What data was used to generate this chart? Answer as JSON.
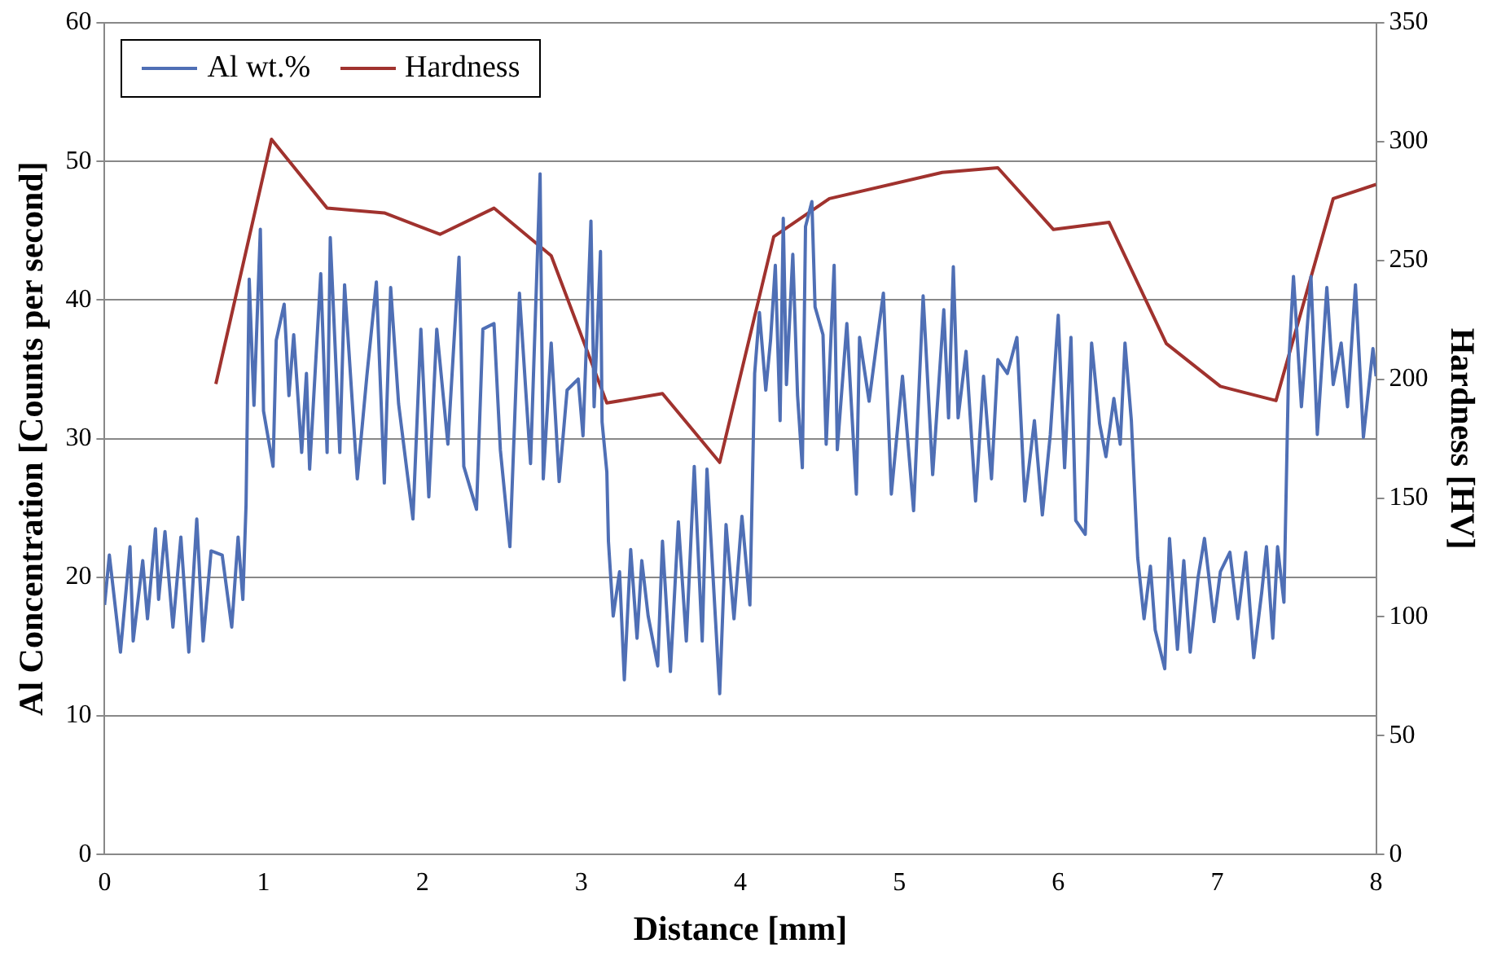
{
  "chart_data": {
    "type": "line",
    "xlabel": "Distance [mm]",
    "ylabel": "Al Concentration [Counts per second]",
    "y2label": "Hardness [HV]",
    "xlim": [
      0,
      8
    ],
    "xticks": [
      0,
      1,
      2,
      3,
      4,
      5,
      6,
      7,
      8
    ],
    "ylim": [
      0,
      60
    ],
    "yticks": [
      0,
      10,
      20,
      30,
      40,
      50,
      60
    ],
    "y2lim": [
      0,
      350
    ],
    "y2ticks": [
      0,
      50,
      100,
      150,
      200,
      250,
      300,
      350
    ],
    "grid": "y",
    "legend": "top left",
    "marker": "none",
    "line_style": "solid",
    "series": [
      {
        "name": "Al wt.%",
        "color": "#4f6fb5",
        "x": [
          0.0,
          0.03,
          0.1,
          0.16,
          0.18,
          0.24,
          0.27,
          0.32,
          0.34,
          0.38,
          0.43,
          0.48,
          0.53,
          0.58,
          0.62,
          0.67,
          0.74,
          0.8,
          0.84,
          0.87,
          0.89,
          0.91,
          0.94,
          0.98,
          1.0,
          1.06,
          1.08,
          1.13,
          1.16,
          1.19,
          1.24,
          1.27,
          1.29,
          1.36,
          1.4,
          1.42,
          1.48,
          1.51,
          1.59,
          1.65,
          1.71,
          1.76,
          1.8,
          1.85,
          1.94,
          1.99,
          2.04,
          2.09,
          2.16,
          2.23,
          2.26,
          2.34,
          2.38,
          2.45,
          2.49,
          2.55,
          2.61,
          2.68,
          2.74,
          2.76,
          2.81,
          2.86,
          2.91,
          2.98,
          3.01,
          3.06,
          3.08,
          3.12,
          3.13,
          3.16,
          3.17,
          3.2,
          3.24,
          3.27,
          3.31,
          3.35,
          3.38,
          3.42,
          3.48,
          3.51,
          3.56,
          3.61,
          3.66,
          3.71,
          3.76,
          3.79,
          3.87,
          3.91,
          3.96,
          4.01,
          4.06,
          4.09,
          4.12,
          4.16,
          4.19,
          4.22,
          4.25,
          4.27,
          4.29,
          4.33,
          4.36,
          4.39,
          4.41,
          4.45,
          4.47,
          4.52,
          4.54,
          4.59,
          4.61,
          4.67,
          4.73,
          4.75,
          4.81,
          4.86,
          4.9,
          4.95,
          5.02,
          5.09,
          5.15,
          5.21,
          5.28,
          5.31,
          5.34,
          5.37,
          5.42,
          5.48,
          5.53,
          5.58,
          5.62,
          5.68,
          5.74,
          5.79,
          5.85,
          5.9,
          5.95,
          6.0,
          6.04,
          6.08,
          6.11,
          6.17,
          6.21,
          6.26,
          6.3,
          6.35,
          6.39,
          6.42,
          6.46,
          6.5,
          6.54,
          6.58,
          6.61,
          6.67,
          6.7,
          6.75,
          6.79,
          6.83,
          6.88,
          6.92,
          6.98,
          7.02,
          7.08,
          7.13,
          7.18,
          7.23,
          7.28,
          7.31,
          7.35,
          7.38,
          7.42,
          7.45,
          7.48,
          7.53,
          7.59,
          7.63,
          7.69,
          7.73,
          7.78,
          7.82,
          7.87,
          7.92,
          7.98,
          8.0
        ],
        "values": [
          18.0,
          21.6,
          14.6,
          22.2,
          15.4,
          21.2,
          17.0,
          23.5,
          18.4,
          23.3,
          16.4,
          22.9,
          14.6,
          24.2,
          15.4,
          21.9,
          21.6,
          16.4,
          22.9,
          18.4,
          25.2,
          41.5,
          32.4,
          45.1,
          32.0,
          28.0,
          37.1,
          39.7,
          33.1,
          37.5,
          29.0,
          34.7,
          27.8,
          41.9,
          29.0,
          44.5,
          29.0,
          41.1,
          27.1,
          34.5,
          41.3,
          26.8,
          40.9,
          32.5,
          24.2,
          37.9,
          25.8,
          37.9,
          29.6,
          43.1,
          28.0,
          24.9,
          37.9,
          38.3,
          29.2,
          22.2,
          40.5,
          28.2,
          49.1,
          27.1,
          36.9,
          26.9,
          33.5,
          34.3,
          30.2,
          45.7,
          32.3,
          43.5,
          31.2,
          27.6,
          22.6,
          17.2,
          20.4,
          12.6,
          22.0,
          15.6,
          21.2,
          17.2,
          13.6,
          22.6,
          13.2,
          24.0,
          15.4,
          28.0,
          15.4,
          27.8,
          11.6,
          23.8,
          17.0,
          24.4,
          18.0,
          34.7,
          39.1,
          33.5,
          37.1,
          42.5,
          31.3,
          45.9,
          33.9,
          43.3,
          33.1,
          27.9,
          45.3,
          47.1,
          39.5,
          37.5,
          29.6,
          42.5,
          29.2,
          38.3,
          26.0,
          37.3,
          32.7,
          37.1,
          40.5,
          26.0,
          34.5,
          24.8,
          40.3,
          27.4,
          39.3,
          31.5,
          42.4,
          31.5,
          36.3,
          25.5,
          34.5,
          27.1,
          35.7,
          34.7,
          37.3,
          25.5,
          31.3,
          24.5,
          30.3,
          38.9,
          27.9,
          37.3,
          24.1,
          23.1,
          36.9,
          31.1,
          28.7,
          32.9,
          29.6,
          36.9,
          31.3,
          21.4,
          17.0,
          20.8,
          16.2,
          13.4,
          22.8,
          14.8,
          21.2,
          14.6,
          20.0,
          22.8,
          16.8,
          20.4,
          21.8,
          17.0,
          21.8,
          14.2,
          18.9,
          22.2,
          15.6,
          22.2,
          18.2,
          35.4,
          41.7,
          32.3,
          41.7,
          30.3,
          40.9,
          33.9,
          36.9,
          32.3,
          41.1,
          30.1,
          36.5,
          34.5
        ]
      },
      {
        "name": "Hardness",
        "color": "#a0322e",
        "axis": "y2",
        "x": [
          0.7,
          1.05,
          1.4,
          1.76,
          2.11,
          2.45,
          2.81,
          3.16,
          3.51,
          3.87,
          4.21,
          4.56,
          5.27,
          5.62,
          5.97,
          6.32,
          6.68,
          7.02,
          7.37,
          7.73,
          8.0
        ],
        "values": [
          198,
          301,
          272,
          270,
          261,
          272,
          252,
          190,
          194,
          165,
          260,
          276,
          287,
          289,
          263,
          266,
          215,
          197,
          191,
          276,
          282
        ]
      }
    ]
  }
}
